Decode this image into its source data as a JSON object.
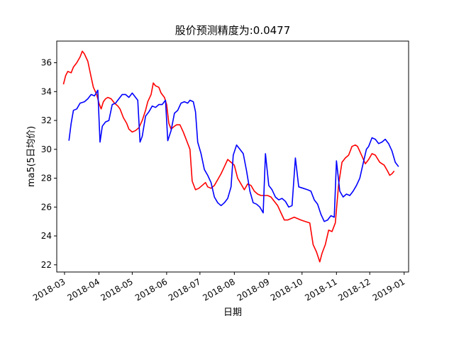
{
  "chart_data": {
    "type": "line",
    "title": "股价预测精度为:0.0477",
    "xlabel": "日期",
    "ylabel": "ma5(5日均价)",
    "x_ticks": [
      "2018-03",
      "2018-04",
      "2018-05",
      "2018-06",
      "2018-07",
      "2018-08",
      "2018-09",
      "2018-10",
      "2018-11",
      "2018-12",
      "2019-01"
    ],
    "y_ticks": [
      "22",
      "24",
      "26",
      "28",
      "30",
      "32",
      "34",
      "36"
    ],
    "xlim": [
      "2018-02-22",
      "2019-01-05"
    ],
    "ylim": [
      21.5,
      37.5
    ],
    "grid": false,
    "series": [
      {
        "color": "#ff0000",
        "points": [
          [
            "2018-02-28",
            34.5
          ],
          [
            "2018-03-02",
            35.1
          ],
          [
            "2018-03-04",
            35.4
          ],
          [
            "2018-03-07",
            35.3
          ],
          [
            "2018-03-09",
            35.7
          ],
          [
            "2018-03-12",
            36.0
          ],
          [
            "2018-03-15",
            36.4
          ],
          [
            "2018-03-17",
            36.8
          ],
          [
            "2018-03-19",
            36.6
          ],
          [
            "2018-03-22",
            36.1
          ],
          [
            "2018-03-25",
            35.0
          ],
          [
            "2018-03-27",
            34.3
          ],
          [
            "2018-03-30",
            33.8
          ],
          [
            "2018-04-01",
            33.2
          ],
          [
            "2018-04-03",
            32.8
          ],
          [
            "2018-04-05",
            33.3
          ],
          [
            "2018-04-07",
            33.5
          ],
          [
            "2018-04-09",
            33.6
          ],
          [
            "2018-04-12",
            33.5
          ],
          [
            "2018-04-15",
            33.2
          ],
          [
            "2018-04-18",
            33.0
          ],
          [
            "2018-04-20",
            32.8
          ],
          [
            "2018-04-23",
            32.2
          ],
          [
            "2018-04-26",
            31.8
          ],
          [
            "2018-04-28",
            31.4
          ],
          [
            "2018-05-01",
            31.2
          ],
          [
            "2018-05-04",
            31.3
          ],
          [
            "2018-05-07",
            31.5
          ],
          [
            "2018-05-10",
            32.0
          ],
          [
            "2018-05-13",
            32.7
          ],
          [
            "2018-05-15",
            33.3
          ],
          [
            "2018-05-18",
            33.8
          ],
          [
            "2018-05-20",
            34.6
          ],
          [
            "2018-05-22",
            34.4
          ],
          [
            "2018-05-25",
            34.3
          ],
          [
            "2018-05-27",
            33.9
          ],
          [
            "2018-05-30",
            33.6
          ],
          [
            "2018-06-01",
            33.1
          ],
          [
            "2018-06-03",
            31.8
          ],
          [
            "2018-06-05",
            31.4
          ],
          [
            "2018-06-08",
            31.6
          ],
          [
            "2018-06-10",
            31.7
          ],
          [
            "2018-06-13",
            31.7
          ],
          [
            "2018-06-16",
            31.2
          ],
          [
            "2018-06-19",
            30.6
          ],
          [
            "2018-06-22",
            30.0
          ],
          [
            "2018-06-24",
            27.8
          ],
          [
            "2018-06-27",
            27.2
          ],
          [
            "2018-06-30",
            27.3
          ],
          [
            "2018-07-03",
            27.5
          ],
          [
            "2018-07-06",
            27.7
          ],
          [
            "2018-07-08",
            27.4
          ],
          [
            "2018-07-11",
            27.3
          ],
          [
            "2018-07-14",
            27.5
          ],
          [
            "2018-07-17",
            27.9
          ],
          [
            "2018-07-20",
            28.3
          ],
          [
            "2018-07-23",
            28.8
          ],
          [
            "2018-07-26",
            29.3
          ],
          [
            "2018-07-29",
            29.1
          ],
          [
            "2018-08-01",
            28.9
          ],
          [
            "2018-08-04",
            28.0
          ],
          [
            "2018-08-07",
            27.6
          ],
          [
            "2018-08-10",
            27.2
          ],
          [
            "2018-08-13",
            27.6
          ],
          [
            "2018-08-16",
            27.5
          ],
          [
            "2018-08-19",
            27.1
          ],
          [
            "2018-08-22",
            26.9
          ],
          [
            "2018-08-25",
            26.8
          ],
          [
            "2018-08-28",
            26.8
          ],
          [
            "2018-08-31",
            26.8
          ],
          [
            "2018-09-03",
            26.7
          ],
          [
            "2018-09-06",
            26.4
          ],
          [
            "2018-09-09",
            26.1
          ],
          [
            "2018-09-12",
            25.6
          ],
          [
            "2018-09-15",
            25.1
          ],
          [
            "2018-09-18",
            25.1
          ],
          [
            "2018-09-21",
            25.2
          ],
          [
            "2018-09-24",
            25.3
          ],
          [
            "2018-09-27",
            25.2
          ],
          [
            "2018-09-30",
            25.1
          ],
          [
            "2018-10-04",
            25.0
          ],
          [
            "2018-10-08",
            24.9
          ],
          [
            "2018-10-11",
            23.4
          ],
          [
            "2018-10-14",
            22.9
          ],
          [
            "2018-10-17",
            22.2
          ],
          [
            "2018-10-19",
            22.8
          ],
          [
            "2018-10-22",
            23.4
          ],
          [
            "2018-10-25",
            24.4
          ],
          [
            "2018-10-28",
            24.3
          ],
          [
            "2018-10-31",
            24.9
          ],
          [
            "2018-11-03",
            27.6
          ],
          [
            "2018-11-06",
            29.1
          ],
          [
            "2018-11-09",
            29.4
          ],
          [
            "2018-11-12",
            29.6
          ],
          [
            "2018-11-15",
            30.2
          ],
          [
            "2018-11-18",
            30.3
          ],
          [
            "2018-11-20",
            30.2
          ],
          [
            "2018-11-23",
            29.7
          ],
          [
            "2018-11-27",
            29.0
          ],
          [
            "2018-11-30",
            29.3
          ],
          [
            "2018-12-03",
            29.7
          ],
          [
            "2018-12-06",
            29.6
          ],
          [
            "2018-12-10",
            29.1
          ],
          [
            "2018-12-14",
            28.9
          ],
          [
            "2018-12-17",
            28.5
          ],
          [
            "2018-12-19",
            28.2
          ],
          [
            "2018-12-21",
            28.3
          ],
          [
            "2018-12-23",
            28.5
          ]
        ]
      },
      {
        "color": "#0000ff",
        "points": [
          [
            "2018-03-05",
            30.6
          ],
          [
            "2018-03-07",
            31.8
          ],
          [
            "2018-03-09",
            32.7
          ],
          [
            "2018-03-12",
            32.8
          ],
          [
            "2018-03-15",
            33.2
          ],
          [
            "2018-03-19",
            33.3
          ],
          [
            "2018-03-22",
            33.5
          ],
          [
            "2018-03-25",
            33.8
          ],
          [
            "2018-03-28",
            33.7
          ],
          [
            "2018-03-31",
            34.1
          ],
          [
            "2018-04-02",
            30.5
          ],
          [
            "2018-04-04",
            31.6
          ],
          [
            "2018-04-07",
            31.9
          ],
          [
            "2018-04-10",
            32.0
          ],
          [
            "2018-04-13",
            33.1
          ],
          [
            "2018-04-16",
            33.2
          ],
          [
            "2018-04-19",
            33.5
          ],
          [
            "2018-04-22",
            33.8
          ],
          [
            "2018-04-25",
            33.8
          ],
          [
            "2018-04-28",
            33.6
          ],
          [
            "2018-05-01",
            33.9
          ],
          [
            "2018-05-04",
            33.6
          ],
          [
            "2018-05-06",
            33.4
          ],
          [
            "2018-05-08",
            30.5
          ],
          [
            "2018-05-10",
            30.9
          ],
          [
            "2018-05-13",
            32.3
          ],
          [
            "2018-05-16",
            32.6
          ],
          [
            "2018-05-19",
            33.0
          ],
          [
            "2018-05-22",
            32.9
          ],
          [
            "2018-05-25",
            33.1
          ],
          [
            "2018-05-28",
            33.1
          ],
          [
            "2018-05-31",
            33.4
          ],
          [
            "2018-06-02",
            30.6
          ],
          [
            "2018-06-05",
            31.3
          ],
          [
            "2018-06-08",
            32.5
          ],
          [
            "2018-06-11",
            32.7
          ],
          [
            "2018-06-14",
            33.2
          ],
          [
            "2018-06-17",
            33.3
          ],
          [
            "2018-06-20",
            33.2
          ],
          [
            "2018-06-22",
            33.4
          ],
          [
            "2018-06-25",
            33.3
          ],
          [
            "2018-06-27",
            32.6
          ],
          [
            "2018-06-29",
            30.5
          ],
          [
            "2018-07-02",
            29.7
          ],
          [
            "2018-07-05",
            28.6
          ],
          [
            "2018-07-08",
            28.2
          ],
          [
            "2018-07-11",
            27.7
          ],
          [
            "2018-07-14",
            26.7
          ],
          [
            "2018-07-17",
            26.3
          ],
          [
            "2018-07-20",
            26.1
          ],
          [
            "2018-07-23",
            26.3
          ],
          [
            "2018-07-26",
            26.6
          ],
          [
            "2018-07-29",
            27.4
          ],
          [
            "2018-07-31",
            29.6
          ],
          [
            "2018-08-03",
            30.3
          ],
          [
            "2018-08-06",
            30.0
          ],
          [
            "2018-08-09",
            29.7
          ],
          [
            "2018-08-12",
            28.5
          ],
          [
            "2018-08-15",
            27.1
          ],
          [
            "2018-08-18",
            26.3
          ],
          [
            "2018-08-21",
            26.2
          ],
          [
            "2018-08-24",
            26.0
          ],
          [
            "2018-08-27",
            25.6
          ],
          [
            "2018-08-29",
            29.7
          ],
          [
            "2018-09-01",
            27.5
          ],
          [
            "2018-09-04",
            27.2
          ],
          [
            "2018-09-07",
            26.7
          ],
          [
            "2018-09-10",
            26.5
          ],
          [
            "2018-09-13",
            26.6
          ],
          [
            "2018-09-16",
            26.4
          ],
          [
            "2018-09-19",
            26.0
          ],
          [
            "2018-09-22",
            26.1
          ],
          [
            "2018-09-25",
            29.4
          ],
          [
            "2018-09-28",
            27.4
          ],
          [
            "2018-10-02",
            27.3
          ],
          [
            "2018-10-06",
            27.2
          ],
          [
            "2018-10-09",
            27.1
          ],
          [
            "2018-10-12",
            26.5
          ],
          [
            "2018-10-15",
            26.2
          ],
          [
            "2018-10-18",
            25.5
          ],
          [
            "2018-10-21",
            25.0
          ],
          [
            "2018-10-24",
            25.1
          ],
          [
            "2018-10-27",
            25.4
          ],
          [
            "2018-10-30",
            25.3
          ],
          [
            "2018-11-01",
            29.2
          ],
          [
            "2018-11-04",
            27.1
          ],
          [
            "2018-11-07",
            26.7
          ],
          [
            "2018-11-10",
            26.9
          ],
          [
            "2018-11-13",
            26.8
          ],
          [
            "2018-11-16",
            27.1
          ],
          [
            "2018-11-19",
            27.5
          ],
          [
            "2018-11-22",
            28.0
          ],
          [
            "2018-11-25",
            29.0
          ],
          [
            "2018-11-28",
            30.0
          ],
          [
            "2018-11-30",
            30.2
          ],
          [
            "2018-12-03",
            30.8
          ],
          [
            "2018-12-06",
            30.7
          ],
          [
            "2018-12-09",
            30.4
          ],
          [
            "2018-12-12",
            30.5
          ],
          [
            "2018-12-15",
            30.7
          ],
          [
            "2018-12-18",
            30.4
          ],
          [
            "2018-12-21",
            29.9
          ],
          [
            "2018-12-24",
            29.1
          ],
          [
            "2018-12-27",
            28.8
          ]
        ]
      }
    ]
  }
}
